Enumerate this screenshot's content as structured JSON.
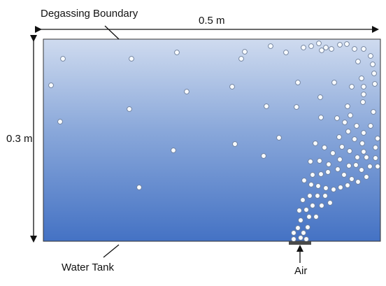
{
  "labels": {
    "top_boundary": "Degassing Boundary",
    "width_dimension": "0.5 m",
    "height_dimension": "0.3 m",
    "tank": "Water Tank",
    "inlet": "Air"
  },
  "colors": {
    "water_top": "#cfdbef",
    "water_bottom": "#4472c4",
    "border": "#333333",
    "bubble_fill": "#f8fbff",
    "bubble_stroke": "#6f7f99",
    "arrow": "#111111",
    "nozzle": "#4a4a4a"
  },
  "icons": {
    "bubble": "air-bubble-icon",
    "width_arrow": "double-headed-arrow-horizontal",
    "height_arrow": "double-headed-arrow-vertical",
    "air_arrow": "up-arrow-icon",
    "nozzle": "air-nozzle"
  }
}
